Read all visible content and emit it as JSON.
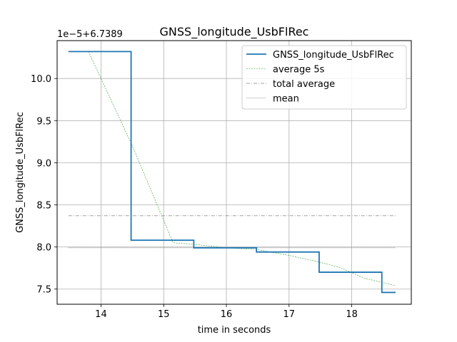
{
  "chart_data": {
    "type": "line",
    "title": "GNSS_longitude_UsbFlRec",
    "xlabel": "time in seconds",
    "ylabel": "GNSS_longitude_UsbFlRec",
    "offset_label": "1e−5+6.7389",
    "xlim": [
      13.3,
      18.95
    ],
    "ylim": [
      7.32,
      10.45
    ],
    "xticks": [
      14,
      15,
      16,
      17,
      18
    ],
    "xtick_labels": [
      "14",
      "15",
      "16",
      "17",
      "18"
    ],
    "yticks": [
      7.5,
      8.0,
      8.5,
      9.0,
      9.5,
      10.0
    ],
    "ytick_labels": [
      "7.5",
      "8.0",
      "8.5",
      "9.0",
      "9.5",
      "10.0"
    ],
    "grid": true,
    "legend_position": "top-right",
    "colors": {
      "signal": "#1f77b4",
      "average": "#2ca02c",
      "total_average": "#444444",
      "mean": "#444444",
      "grid": "#b0b0b0"
    },
    "series": [
      {
        "name": "GNSS_longitude_UsbFlRec",
        "style": "step",
        "x": [
          13.48,
          14.48,
          14.48,
          15.48,
          15.48,
          16.48,
          16.48,
          17.48,
          17.48,
          18.48,
          18.48,
          18.7
        ],
        "y": [
          10.32,
          10.32,
          8.08,
          8.08,
          7.99,
          7.99,
          7.94,
          7.94,
          7.7,
          7.7,
          7.46,
          7.46
        ]
      },
      {
        "name": "average 5s",
        "style": "dashed",
        "x": [
          13.48,
          13.8,
          14.5,
          15.15,
          15.5,
          16.0,
          16.48,
          17.0,
          17.48,
          17.8,
          18.2,
          18.7
        ],
        "y": [
          10.32,
          10.32,
          9.2,
          8.05,
          8.03,
          7.99,
          7.97,
          7.9,
          7.82,
          7.76,
          7.63,
          7.54
        ]
      },
      {
        "name": "total average",
        "style": "dashdot",
        "x": [
          13.48,
          18.7
        ],
        "y": [
          8.37,
          8.37
        ]
      },
      {
        "name": "mean",
        "style": "dotted",
        "x": [
          13.48,
          18.7
        ],
        "y": [
          7.99,
          7.99
        ]
      }
    ]
  }
}
